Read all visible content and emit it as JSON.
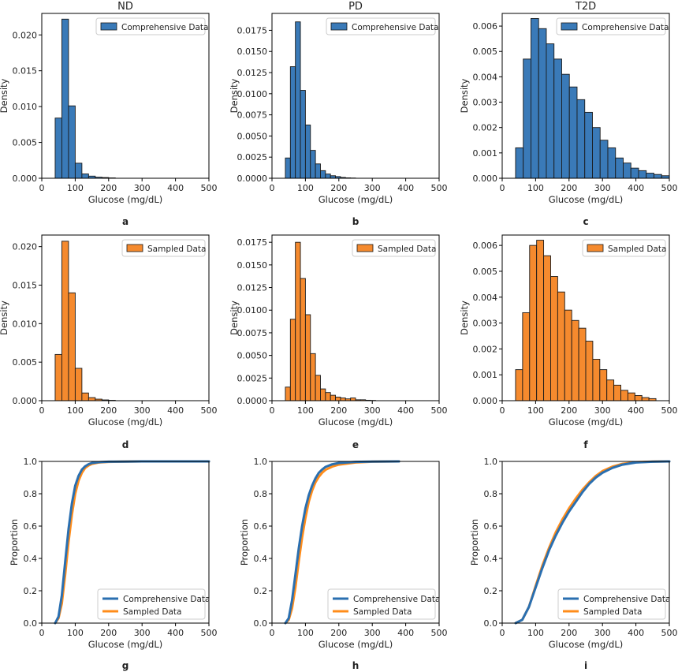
{
  "panel_labels": [
    "a",
    "b",
    "c",
    "d",
    "e",
    "f",
    "g",
    "h",
    "i"
  ],
  "legend": {
    "comprehensive": "Comprehensive Data",
    "sampled": "Sampled Data"
  },
  "colors": {
    "comprehensive": "#3a7ab8",
    "sampled": "#f58a2e",
    "cdf_comprehensive": "#2a6fb0",
    "cdf_sampled": "#ff8c1a"
  },
  "chart_data": [
    {
      "id": "a",
      "type": "bar",
      "title": "ND",
      "xlabel": "Glucose (mg/dL)",
      "ylabel": "Density",
      "xlim": [
        0,
        500
      ],
      "ylim": [
        0,
        0.023
      ],
      "xticks": [
        0,
        100,
        200,
        300,
        400,
        500
      ],
      "yticks": [
        0,
        0.005,
        0.01,
        0.015,
        0.02
      ],
      "ytick_labels": [
        "0.000",
        "0.005",
        "0.010",
        "0.015",
        "0.020"
      ],
      "bin_edges": [
        40,
        60,
        80,
        100,
        120,
        140,
        160,
        180,
        200,
        220
      ],
      "values": [
        0.0084,
        0.0222,
        0.0101,
        0.0021,
        0.0006,
        0.0003,
        0.00015,
        0.0001,
        5e-05
      ],
      "legend": "Comprehensive Data"
    },
    {
      "id": "b",
      "type": "bar",
      "title": "PD",
      "xlabel": "Glucose (mg/dL)",
      "ylabel": "Density",
      "xlim": [
        0,
        500
      ],
      "ylim": [
        0,
        0.0195
      ],
      "xticks": [
        0,
        100,
        200,
        300,
        400,
        500
      ],
      "yticks": [
        0,
        0.0025,
        0.005,
        0.0075,
        0.01,
        0.0125,
        0.015,
        0.0175
      ],
      "ytick_labels": [
        "0.0000",
        "0.0025",
        "0.0050",
        "0.0075",
        "0.0100",
        "0.0125",
        "0.0150",
        "0.0175"
      ],
      "bin_edges": [
        40,
        55,
        70,
        85,
        100,
        115,
        130,
        145,
        160,
        175,
        190,
        205,
        220,
        235,
        250
      ],
      "values": [
        0.0024,
        0.0132,
        0.0185,
        0.0104,
        0.0063,
        0.0033,
        0.0017,
        0.0009,
        0.0005,
        0.0003,
        0.0002,
        0.0001,
        5e-05,
        3e-05
      ],
      "legend": "Comprehensive Data"
    },
    {
      "id": "c",
      "type": "bar",
      "title": "T2D",
      "xlabel": "Glucose (mg/dL)",
      "ylabel": "Density",
      "xlim": [
        0,
        500
      ],
      "ylim": [
        0,
        0.0065
      ],
      "xticks": [
        0,
        100,
        200,
        300,
        400,
        500
      ],
      "yticks": [
        0,
        0.001,
        0.002,
        0.003,
        0.004,
        0.005,
        0.006
      ],
      "ytick_labels": [
        "0.000",
        "0.001",
        "0.002",
        "0.003",
        "0.004",
        "0.005",
        "0.006"
      ],
      "bin_edges": [
        40,
        63,
        86,
        109,
        132,
        155,
        178,
        201,
        224,
        247,
        270,
        293,
        316,
        339,
        362,
        385,
        408,
        431,
        454,
        477,
        500
      ],
      "values": [
        0.0012,
        0.0047,
        0.0063,
        0.0059,
        0.0053,
        0.0047,
        0.0041,
        0.0036,
        0.0031,
        0.0026,
        0.002,
        0.0015,
        0.0012,
        0.0008,
        0.0006,
        0.0004,
        0.0003,
        0.0002,
        0.00015,
        0.0001
      ],
      "legend": "Comprehensive Data"
    },
    {
      "id": "d",
      "type": "bar",
      "title": "",
      "xlabel": "Glucose (mg/dL)",
      "ylabel": "Density",
      "xlim": [
        0,
        500
      ],
      "ylim": [
        0,
        0.0215
      ],
      "xticks": [
        0,
        100,
        200,
        300,
        400,
        500
      ],
      "yticks": [
        0,
        0.005,
        0.01,
        0.015,
        0.02
      ],
      "ytick_labels": [
        "0.000",
        "0.005",
        "0.010",
        "0.015",
        "0.020"
      ],
      "bin_edges": [
        40,
        60,
        80,
        100,
        120,
        140,
        160,
        180,
        200,
        220
      ],
      "values": [
        0.006,
        0.0207,
        0.014,
        0.0042,
        0.001,
        0.0004,
        0.0002,
        0.0001,
        5e-05
      ],
      "legend": "Sampled Data"
    },
    {
      "id": "e",
      "type": "bar",
      "title": "",
      "xlabel": "Glucose (mg/dL)",
      "ylabel": "Density",
      "xlim": [
        0,
        500
      ],
      "ylim": [
        0,
        0.0183
      ],
      "xticks": [
        0,
        100,
        200,
        300,
        400,
        500
      ],
      "yticks": [
        0,
        0.0025,
        0.005,
        0.0075,
        0.01,
        0.0125,
        0.015,
        0.0175
      ],
      "ytick_labels": [
        "0.0000",
        "0.0025",
        "0.0050",
        "0.0075",
        "0.0100",
        "0.0125",
        "0.0150",
        "0.0175"
      ],
      "bin_edges": [
        40,
        55,
        70,
        85,
        100,
        115,
        130,
        145,
        160,
        175,
        190,
        205,
        220,
        235,
        250,
        265,
        280,
        295,
        310
      ],
      "values": [
        0.0015,
        0.009,
        0.0175,
        0.0135,
        0.0095,
        0.0052,
        0.0028,
        0.0013,
        0.0009,
        0.0006,
        0.0004,
        0.0003,
        0.0002,
        0.0003,
        0.0001,
        0.0001,
        5e-05,
        3e-05
      ],
      "legend": "Sampled Data"
    },
    {
      "id": "f",
      "type": "bar",
      "title": "",
      "xlabel": "Glucose (mg/dL)",
      "ylabel": "Density",
      "xlim": [
        0,
        500
      ],
      "ylim": [
        0,
        0.0064
      ],
      "xticks": [
        0,
        100,
        200,
        300,
        400,
        500
      ],
      "yticks": [
        0,
        0.001,
        0.002,
        0.003,
        0.004,
        0.005,
        0.006
      ],
      "ytick_labels": [
        "0.000",
        "0.001",
        "0.002",
        "0.003",
        "0.004",
        "0.005",
        "0.006"
      ],
      "bin_edges": [
        40,
        61,
        82,
        103,
        124,
        145,
        166,
        187,
        208,
        229,
        250,
        271,
        292,
        313,
        334,
        355,
        376,
        397,
        418,
        439,
        460
      ],
      "values": [
        0.0012,
        0.0034,
        0.006,
        0.0062,
        0.0056,
        0.0048,
        0.0042,
        0.0035,
        0.0031,
        0.0028,
        0.0023,
        0.0016,
        0.0012,
        0.0008,
        0.0006,
        0.0004,
        0.0003,
        0.0002,
        0.00012,
        8e-05
      ],
      "legend": "Sampled Data"
    },
    {
      "id": "g",
      "type": "line",
      "title": "",
      "xlabel": "Glucose (mg/dL)",
      "ylabel": "Proportion",
      "xlim": [
        0,
        500
      ],
      "ylim": [
        0,
        1.0
      ],
      "xticks": [
        0,
        100,
        200,
        300,
        400,
        500
      ],
      "yticks": [
        0,
        0.2,
        0.4,
        0.6,
        0.8,
        1.0
      ],
      "ytick_labels": [
        "0.0",
        "0.2",
        "0.4",
        "0.6",
        "0.8",
        "1.0"
      ],
      "series": [
        {
          "name": "Comprehensive Data",
          "x": [
            40,
            50,
            60,
            70,
            80,
            90,
            100,
            110,
            120,
            130,
            140,
            150,
            170,
            200,
            250,
            300,
            400,
            500
          ],
          "y": [
            0.0,
            0.04,
            0.17,
            0.38,
            0.58,
            0.74,
            0.85,
            0.91,
            0.95,
            0.97,
            0.983,
            0.99,
            0.995,
            0.998,
            0.999,
            1.0,
            1.0,
            1.0
          ]
        },
        {
          "name": "Sampled Data",
          "x": [
            40,
            50,
            60,
            70,
            80,
            90,
            100,
            110,
            120,
            130,
            140,
            150,
            170,
            200,
            250,
            300,
            400,
            500
          ],
          "y": [
            0.0,
            0.03,
            0.12,
            0.3,
            0.5,
            0.67,
            0.8,
            0.88,
            0.93,
            0.96,
            0.975,
            0.985,
            0.993,
            0.997,
            0.999,
            1.0,
            1.0,
            1.0
          ]
        }
      ]
    },
    {
      "id": "h",
      "type": "line",
      "title": "",
      "xlabel": "Glucose (mg/dL)",
      "ylabel": "Proportion",
      "xlim": [
        0,
        500
      ],
      "ylim": [
        0,
        1.0
      ],
      "xticks": [
        0,
        100,
        200,
        300,
        400,
        500
      ],
      "yticks": [
        0,
        0.2,
        0.4,
        0.6,
        0.8,
        1.0
      ],
      "ytick_labels": [
        "0.0",
        "0.2",
        "0.4",
        "0.6",
        "0.8",
        "1.0"
      ],
      "series": [
        {
          "name": "Comprehensive Data",
          "x": [
            40,
            50,
            60,
            70,
            80,
            90,
            100,
            110,
            120,
            130,
            140,
            150,
            160,
            180,
            200,
            250,
            300,
            380
          ],
          "y": [
            0.0,
            0.03,
            0.14,
            0.3,
            0.46,
            0.6,
            0.71,
            0.79,
            0.85,
            0.895,
            0.93,
            0.95,
            0.966,
            0.982,
            0.99,
            0.997,
            0.999,
            1.0
          ]
        },
        {
          "name": "Sampled Data",
          "x": [
            40,
            50,
            60,
            70,
            80,
            90,
            100,
            110,
            120,
            130,
            140,
            150,
            160,
            180,
            200,
            250,
            300,
            380
          ],
          "y": [
            0.0,
            0.02,
            0.09,
            0.22,
            0.38,
            0.53,
            0.65,
            0.75,
            0.82,
            0.87,
            0.905,
            0.93,
            0.948,
            0.968,
            0.98,
            0.993,
            0.998,
            1.0
          ]
        }
      ]
    },
    {
      "id": "i",
      "type": "line",
      "title": "",
      "xlabel": "Glucose (mg/dL)",
      "ylabel": "Proportion",
      "xlim": [
        0,
        500
      ],
      "ylim": [
        0,
        1.0
      ],
      "xticks": [
        0,
        100,
        200,
        300,
        400,
        500
      ],
      "yticks": [
        0,
        0.2,
        0.4,
        0.6,
        0.8,
        1.0
      ],
      "ytick_labels": [
        "0.0",
        "0.2",
        "0.4",
        "0.6",
        "0.8",
        "1.0"
      ],
      "series": [
        {
          "name": "Comprehensive Data",
          "x": [
            40,
            60,
            80,
            100,
            120,
            140,
            160,
            180,
            200,
            220,
            240,
            260,
            280,
            300,
            330,
            360,
            400,
            450,
            500
          ],
          "y": [
            0.0,
            0.02,
            0.1,
            0.22,
            0.34,
            0.45,
            0.54,
            0.62,
            0.69,
            0.75,
            0.81,
            0.86,
            0.9,
            0.93,
            0.96,
            0.98,
            0.993,
            0.998,
            1.0
          ]
        },
        {
          "name": "Sampled Data",
          "x": [
            40,
            60,
            80,
            100,
            120,
            140,
            160,
            180,
            200,
            220,
            240,
            260,
            280,
            300,
            330,
            360,
            400,
            450,
            500
          ],
          "y": [
            0.0,
            0.02,
            0.1,
            0.23,
            0.355,
            0.465,
            0.56,
            0.64,
            0.71,
            0.77,
            0.825,
            0.87,
            0.91,
            0.94,
            0.968,
            0.985,
            0.995,
            0.999,
            1.0
          ]
        }
      ]
    }
  ]
}
